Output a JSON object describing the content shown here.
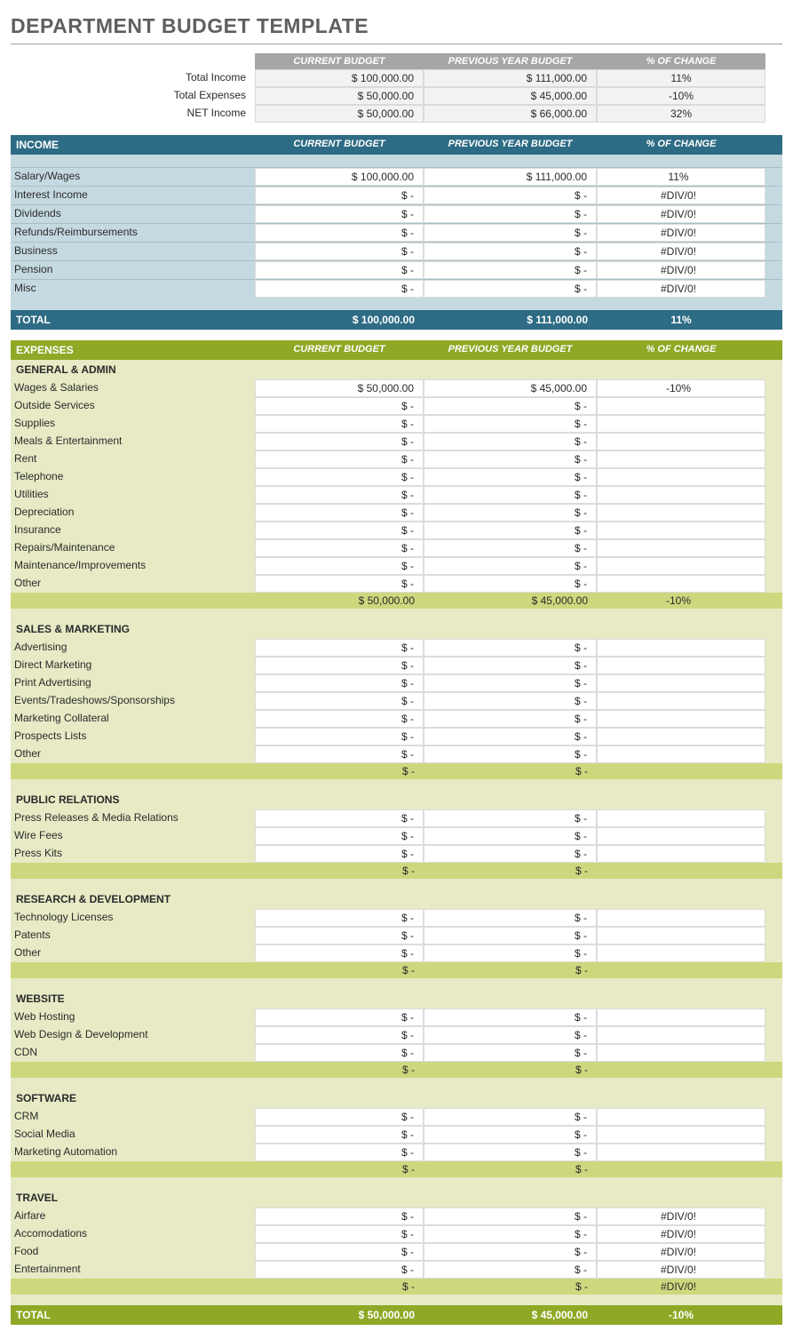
{
  "title": "DEPARTMENT BUDGET TEMPLATE",
  "headers": {
    "current": "CURRENT BUDGET",
    "previous": "PREVIOUS YEAR BUDGET",
    "change": "% OF CHANGE"
  },
  "summary": {
    "rows": [
      {
        "label": "Total Income",
        "current": "$ 100,000.00",
        "previous": "$ 111,000.00",
        "change": "11%"
      },
      {
        "label": "Total Expenses",
        "current": "$ 50,000.00",
        "previous": "$ 45,000.00",
        "change": "-10%"
      },
      {
        "label": "NET Income",
        "current": "$ 50,000.00",
        "previous": "$ 66,000.00",
        "change": "32%"
      }
    ]
  },
  "income": {
    "title": "INCOME",
    "rows": [
      {
        "label": "Salary/Wages",
        "current": "$ 100,000.00",
        "previous": "$ 111,000.00",
        "change": "11%"
      },
      {
        "label": "Interest Income",
        "current": "$ -",
        "previous": "$ -",
        "change": "#DIV/0!"
      },
      {
        "label": "Dividends",
        "current": "$ -",
        "previous": "$ -",
        "change": "#DIV/0!"
      },
      {
        "label": "Refunds/Reimbursements",
        "current": "$ -",
        "previous": "$ -",
        "change": "#DIV/0!"
      },
      {
        "label": "Business",
        "current": "$ -",
        "previous": "$ -",
        "change": "#DIV/0!"
      },
      {
        "label": "Pension",
        "current": "$ -",
        "previous": "$ -",
        "change": "#DIV/0!"
      },
      {
        "label": "Misc",
        "current": "$ -",
        "previous": "$ -",
        "change": "#DIV/0!"
      }
    ],
    "total": {
      "label": "TOTAL",
      "current": "$ 100,000.00",
      "previous": "$ 111,000.00",
      "change": "11%"
    }
  },
  "expenses": {
    "title": "EXPENSES",
    "categories": [
      {
        "title": "GENERAL & ADMIN",
        "rows": [
          {
            "label": "Wages & Salaries",
            "current": "$ 50,000.00",
            "previous": "$ 45,000.00",
            "change": "-10%"
          },
          {
            "label": "Outside Services",
            "current": "$ -",
            "previous": "$ -",
            "change": ""
          },
          {
            "label": "Supplies",
            "current": "$ -",
            "previous": "$ -",
            "change": ""
          },
          {
            "label": "Meals & Entertainment",
            "current": "$ -",
            "previous": "$ -",
            "change": ""
          },
          {
            "label": "Rent",
            "current": "$ -",
            "previous": "$ -",
            "change": ""
          },
          {
            "label": "Telephone",
            "current": "$ -",
            "previous": "$ -",
            "change": ""
          },
          {
            "label": "Utilities",
            "current": "$ -",
            "previous": "$ -",
            "change": ""
          },
          {
            "label": "Depreciation",
            "current": "$ -",
            "previous": "$ -",
            "change": ""
          },
          {
            "label": "Insurance",
            "current": "$ -",
            "previous": "$ -",
            "change": ""
          },
          {
            "label": "Repairs/Maintenance",
            "current": "$ -",
            "previous": "$ -",
            "change": ""
          },
          {
            "label": "Maintenance/Improvements",
            "current": "$ -",
            "previous": "$ -",
            "change": ""
          },
          {
            "label": "Other",
            "current": "$ -",
            "previous": "$ -",
            "change": ""
          }
        ],
        "subtotal": {
          "current": "$ 50,000.00",
          "previous": "$ 45,000.00",
          "change": "-10%"
        }
      },
      {
        "title": "SALES & MARKETING",
        "rows": [
          {
            "label": "Advertising",
            "current": "$ -",
            "previous": "$ -",
            "change": ""
          },
          {
            "label": "Direct Marketing",
            "current": "$ -",
            "previous": "$ -",
            "change": ""
          },
          {
            "label": "Print Advertising",
            "current": "$ -",
            "previous": "$ -",
            "change": ""
          },
          {
            "label": "Events/Tradeshows/Sponsorships",
            "current": "$ -",
            "previous": "$ -",
            "change": ""
          },
          {
            "label": "Marketing Collateral",
            "current": "$ -",
            "previous": "$ -",
            "change": ""
          },
          {
            "label": "Prospects Lists",
            "current": "$ -",
            "previous": "$ -",
            "change": ""
          },
          {
            "label": "Other",
            "current": "$ -",
            "previous": "$ -",
            "change": ""
          }
        ],
        "subtotal": {
          "current": "$ -",
          "previous": "$ -",
          "change": ""
        }
      },
      {
        "title": "PUBLIC RELATIONS",
        "rows": [
          {
            "label": "Press Releases & Media Relations",
            "current": "$ -",
            "previous": "$ -",
            "change": ""
          },
          {
            "label": "Wire Fees",
            "current": "$ -",
            "previous": "$ -",
            "change": ""
          },
          {
            "label": "Press Kits",
            "current": "$ -",
            "previous": "$ -",
            "change": ""
          }
        ],
        "subtotal": {
          "current": "$ -",
          "previous": "$ -",
          "change": ""
        }
      },
      {
        "title": "RESEARCH & DEVELOPMENT",
        "rows": [
          {
            "label": "Technology Licenses",
            "current": "$ -",
            "previous": "$ -",
            "change": ""
          },
          {
            "label": "Patents",
            "current": "$ -",
            "previous": "$ -",
            "change": ""
          },
          {
            "label": "Other",
            "current": "$ -",
            "previous": "$ -",
            "change": ""
          }
        ],
        "subtotal": {
          "current": "$ -",
          "previous": "$ -",
          "change": ""
        }
      },
      {
        "title": "WEBSITE",
        "rows": [
          {
            "label": "Web Hosting",
            "current": "$ -",
            "previous": "$ -",
            "change": ""
          },
          {
            "label": "Web Design & Development",
            "current": "$ -",
            "previous": "$ -",
            "change": ""
          },
          {
            "label": "CDN",
            "current": "$ -",
            "previous": "$ -",
            "change": ""
          }
        ],
        "subtotal": {
          "current": "$ -",
          "previous": "$ -",
          "change": ""
        }
      },
      {
        "title": "SOFTWARE",
        "rows": [
          {
            "label": "CRM",
            "current": "$ -",
            "previous": "$ -",
            "change": ""
          },
          {
            "label": "Social Media",
            "current": "$ -",
            "previous": "$ -",
            "change": ""
          },
          {
            "label": "Marketing Automation",
            "current": "$ -",
            "previous": "$ -",
            "change": ""
          }
        ],
        "subtotal": {
          "current": "$ -",
          "previous": "$ -",
          "change": ""
        }
      },
      {
        "title": "TRAVEL",
        "rows": [
          {
            "label": "Airfare",
            "current": "$ -",
            "previous": "$ -",
            "change": "#DIV/0!"
          },
          {
            "label": "Accomodations",
            "current": "$ -",
            "previous": "$ -",
            "change": "#DIV/0!"
          },
          {
            "label": "Food",
            "current": "$ -",
            "previous": "$ -",
            "change": "#DIV/0!"
          },
          {
            "label": "Entertainment",
            "current": "$ -",
            "previous": "$ -",
            "change": "#DIV/0!"
          }
        ],
        "subtotal": {
          "current": "$ -",
          "previous": "$ -",
          "change": "#DIV/0!"
        }
      }
    ],
    "total": {
      "label": "TOTAL",
      "current": "$ 50,000.00",
      "previous": "$ 45,000.00",
      "change": "-10%"
    }
  },
  "style": {
    "page_bg": "#ffffff",
    "title_color": "#5f5f5f",
    "summary_header_bg": "#a6a6a6",
    "summary_cell_bg": "#f2f2f2",
    "income_header_bg": "#2e6b84",
    "income_body_bg": "#c5d9e0",
    "expenses_header_bg": "#8fa825",
    "expenses_body_bg": "#e7eac5",
    "expenses_subtotal_bg": "#cdd87e",
    "cell_border": "#dcdcdc"
  }
}
